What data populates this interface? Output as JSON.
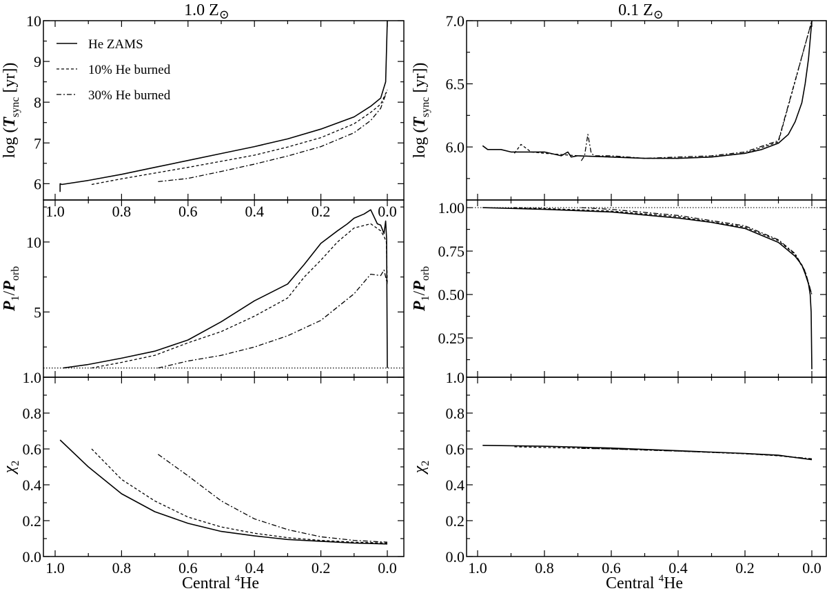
{
  "legend": [
    {
      "label": "He ZAMS",
      "style": "solid"
    },
    {
      "label": "10% He burned",
      "style": "dashed"
    },
    {
      "label": "30% He burned",
      "style": "dashdot"
    }
  ],
  "columns": [
    {
      "title_main": "1.0 Z",
      "title_sym": "⊙"
    },
    {
      "title_main": "0.1 Z",
      "title_sym": "⊙"
    }
  ],
  "xlabel": {
    "text": "Central ",
    "sup": "4",
    "element": "He"
  },
  "ylabels": {
    "tsync": {
      "pre": "log (",
      "var": "T",
      "sub": "sync",
      "post": " [yr])"
    },
    "ratio": {
      "var1": "P",
      "sub1": "1",
      "slash": "/",
      "var2": "P",
      "sub2": "orb"
    },
    "chi": {
      "var": "χ",
      "sub": "2"
    }
  },
  "chart_data": [
    {
      "type": "line",
      "panel": "left-top",
      "column": 0,
      "ylabel": "tsync",
      "xlim": [
        1.0,
        0.0
      ],
      "ylim": [
        5.6,
        10
      ],
      "xticks": [
        "1.0",
        "0.8",
        "0.6",
        "0.4",
        "0.2",
        "0.0"
      ],
      "yticks": [
        "6",
        "7",
        "8",
        "9",
        "10"
      ],
      "yminor": 0.5,
      "series": [
        {
          "name": "He ZAMS",
          "style": "solid",
          "x": [
            0.985,
            0.985,
            0.98,
            0.9,
            0.8,
            0.7,
            0.6,
            0.5,
            0.4,
            0.3,
            0.2,
            0.1,
            0.05,
            0.02,
            0.005,
            0.0
          ],
          "y": [
            5.8,
            6.0,
            5.98,
            6.08,
            6.23,
            6.4,
            6.57,
            6.74,
            6.91,
            7.1,
            7.34,
            7.64,
            7.9,
            8.1,
            8.5,
            10.0
          ]
        },
        {
          "name": "10% He burned",
          "style": "dashed",
          "x": [
            0.89,
            0.8,
            0.7,
            0.6,
            0.5,
            0.4,
            0.3,
            0.2,
            0.1,
            0.05,
            0.02,
            0.0
          ],
          "y": [
            5.98,
            6.12,
            6.26,
            6.4,
            6.55,
            6.7,
            6.9,
            7.13,
            7.47,
            7.75,
            7.95,
            8.3
          ]
        },
        {
          "name": "30% He burned",
          "style": "dashdot",
          "x": [
            0.69,
            0.6,
            0.5,
            0.4,
            0.3,
            0.2,
            0.1,
            0.05,
            0.02,
            0.0
          ],
          "y": [
            6.05,
            6.13,
            6.3,
            6.48,
            6.68,
            6.91,
            7.25,
            7.55,
            7.85,
            8.3
          ]
        }
      ]
    },
    {
      "type": "line",
      "panel": "left-middle",
      "column": 0,
      "ylabel": "ratio",
      "xlim": [
        1.0,
        0.0
      ],
      "ylim": [
        0.34,
        13.0
      ],
      "reference_line": 1.0,
      "xticks": [],
      "yticks": [
        "5",
        "10"
      ],
      "yminor": 2.5,
      "series": [
        {
          "name": "He ZAMS",
          "style": "solid",
          "x": [
            0.975,
            0.9,
            0.8,
            0.7,
            0.6,
            0.5,
            0.4,
            0.3,
            0.25,
            0.2,
            0.15,
            0.12,
            0.1,
            0.07,
            0.05,
            0.03,
            0.02,
            0.01,
            0.005,
            0.002,
            0.0
          ],
          "y": [
            1.0,
            1.25,
            1.7,
            2.2,
            3.0,
            4.3,
            5.8,
            7.0,
            8.4,
            9.9,
            10.8,
            11.3,
            11.7,
            12.0,
            12.3,
            11.3,
            11.2,
            10.6,
            11.5,
            10.2,
            1.0
          ]
        },
        {
          "name": "10% He burned",
          "style": "dashed",
          "x": [
            0.89,
            0.8,
            0.7,
            0.6,
            0.5,
            0.4,
            0.3,
            0.25,
            0.2,
            0.15,
            0.1,
            0.05,
            0.02,
            0.01,
            0.003,
            0.0
          ],
          "y": [
            1.0,
            1.4,
            1.9,
            2.8,
            3.6,
            4.7,
            6.0,
            7.5,
            8.7,
            10.0,
            11.0,
            11.3,
            10.8,
            10.4,
            10.0,
            7.0
          ]
        },
        {
          "name": "30% He burned",
          "style": "dashdot",
          "x": [
            0.69,
            0.6,
            0.5,
            0.4,
            0.3,
            0.2,
            0.1,
            0.05,
            0.02,
            0.01,
            0.0
          ],
          "y": [
            1.0,
            1.5,
            1.9,
            2.5,
            3.3,
            4.4,
            6.3,
            7.7,
            7.6,
            8.0,
            7.0
          ]
        }
      ]
    },
    {
      "type": "line",
      "panel": "left-bottom",
      "column": 0,
      "ylabel": "chi",
      "xlim": [
        1.0,
        0.0
      ],
      "ylim": [
        0.0,
        1.0
      ],
      "xticks": [
        "1.0",
        "0.8",
        "0.6",
        "0.4",
        "0.2",
        "0.0"
      ],
      "yticks": [
        "0.0",
        "0.2",
        "0.4",
        "0.6",
        "0.8",
        "1.0"
      ],
      "yminor": 0.1,
      "series": [
        {
          "name": "He ZAMS",
          "style": "solid",
          "x": [
            0.985,
            0.9,
            0.8,
            0.7,
            0.6,
            0.5,
            0.4,
            0.3,
            0.2,
            0.1,
            0.0
          ],
          "y": [
            0.65,
            0.5,
            0.35,
            0.25,
            0.185,
            0.14,
            0.115,
            0.095,
            0.085,
            0.075,
            0.07
          ]
        },
        {
          "name": "10% He burned",
          "style": "dashed",
          "x": [
            0.89,
            0.8,
            0.7,
            0.6,
            0.5,
            0.4,
            0.3,
            0.2,
            0.1,
            0.0
          ],
          "y": [
            0.6,
            0.43,
            0.31,
            0.22,
            0.165,
            0.13,
            0.105,
            0.09,
            0.08,
            0.075
          ]
        },
        {
          "name": "30% He burned",
          "style": "dashdot",
          "x": [
            0.69,
            0.6,
            0.5,
            0.4,
            0.3,
            0.2,
            0.1,
            0.0
          ],
          "y": [
            0.57,
            0.45,
            0.31,
            0.21,
            0.15,
            0.11,
            0.09,
            0.08
          ]
        }
      ]
    },
    {
      "type": "line",
      "panel": "right-top",
      "column": 1,
      "ylabel": "tsync",
      "xlim": [
        1.0,
        0.0
      ],
      "ylim": [
        5.58,
        7.0
      ],
      "xticks": [],
      "yticks": [
        "6.0",
        "6.5",
        "7.0"
      ],
      "yminor": 0.25,
      "series": [
        {
          "name": "He ZAMS",
          "style": "solid",
          "x": [
            0.985,
            0.97,
            0.93,
            0.9,
            0.8,
            0.75,
            0.73,
            0.72,
            0.7,
            0.6,
            0.5,
            0.4,
            0.3,
            0.2,
            0.15,
            0.1,
            0.07,
            0.05,
            0.03,
            0.02,
            0.01,
            0.0
          ],
          "y": [
            6.01,
            5.98,
            5.98,
            5.96,
            5.96,
            5.93,
            5.96,
            5.92,
            5.93,
            5.92,
            5.91,
            5.91,
            5.92,
            5.95,
            5.98,
            6.03,
            6.1,
            6.2,
            6.35,
            6.5,
            6.7,
            7.0
          ]
        },
        {
          "name": "10% He burned",
          "style": "dashed",
          "x": [
            0.89,
            0.87,
            0.84,
            0.8,
            0.7,
            0.6,
            0.5,
            0.4,
            0.3,
            0.2,
            0.1,
            0.0
          ],
          "y": [
            5.95,
            6.02,
            5.96,
            5.95,
            5.93,
            5.92,
            5.91,
            5.91,
            5.92,
            5.95,
            6.04,
            7.0
          ]
        },
        {
          "name": "30% He burned",
          "style": "dashdot",
          "x": [
            0.69,
            0.68,
            0.67,
            0.66,
            0.65,
            0.6,
            0.5,
            0.4,
            0.3,
            0.2,
            0.1,
            0.0
          ],
          "y": [
            5.89,
            5.93,
            6.1,
            5.95,
            5.93,
            5.93,
            5.91,
            5.92,
            5.93,
            5.96,
            6.05,
            7.0
          ]
        }
      ]
    },
    {
      "type": "line",
      "panel": "right-middle",
      "column": 1,
      "ylabel": "ratio",
      "xlim": [
        1.0,
        0.0
      ],
      "ylim": [
        0.024,
        1.044
      ],
      "reference_line": 1.0,
      "xticks": [],
      "yticks": [
        "0.25",
        "0.50",
        "0.75",
        "1.00"
      ],
      "yminor": 0.125,
      "series": [
        {
          "name": "He ZAMS",
          "style": "solid",
          "x": [
            0.985,
            0.8,
            0.6,
            0.4,
            0.3,
            0.2,
            0.1,
            0.05,
            0.03,
            0.02,
            0.01,
            0.005,
            0.002,
            0.0
          ],
          "y": [
            1.0,
            0.99,
            0.975,
            0.94,
            0.915,
            0.88,
            0.8,
            0.72,
            0.67,
            0.62,
            0.56,
            0.5,
            0.4,
            0.07
          ]
        },
        {
          "name": "10% He burned",
          "style": "dashed",
          "x": [
            0.89,
            0.8,
            0.6,
            0.4,
            0.2,
            0.1,
            0.05,
            0.02,
            0.0
          ],
          "y": [
            1.0,
            0.995,
            0.98,
            0.948,
            0.888,
            0.81,
            0.73,
            0.63,
            0.5
          ]
        },
        {
          "name": "30% He burned",
          "style": "dashdot",
          "x": [
            0.69,
            0.6,
            0.4,
            0.2,
            0.1,
            0.05,
            0.02,
            0.0
          ],
          "y": [
            1.0,
            0.99,
            0.955,
            0.895,
            0.815,
            0.735,
            0.635,
            0.5
          ]
        }
      ]
    },
    {
      "type": "line",
      "panel": "right-bottom",
      "column": 1,
      "ylabel": "chi",
      "xlim": [
        1.0,
        0.0
      ],
      "ylim": [
        0.0,
        1.0
      ],
      "xticks": [
        "1.0",
        "0.8",
        "0.6",
        "0.4",
        "0.2",
        "0.0"
      ],
      "yticks": [
        "0.0",
        "0.2",
        "0.4",
        "0.6",
        "0.8",
        "1.0"
      ],
      "yminor": 0.1,
      "series": [
        {
          "name": "He ZAMS",
          "style": "solid",
          "x": [
            0.985,
            0.8,
            0.6,
            0.4,
            0.2,
            0.1,
            0.0
          ],
          "y": [
            0.62,
            0.615,
            0.605,
            0.59,
            0.575,
            0.565,
            0.54
          ]
        },
        {
          "name": "10% He burned",
          "style": "dashed",
          "x": [
            0.89,
            0.8,
            0.6,
            0.4,
            0.2,
            0.1,
            0.0
          ],
          "y": [
            0.612,
            0.608,
            0.6,
            0.588,
            0.573,
            0.562,
            0.542
          ]
        },
        {
          "name": "30% He burned",
          "style": "dashdot",
          "x": [
            0.69,
            0.6,
            0.4,
            0.2,
            0.1,
            0.0
          ],
          "y": [
            0.603,
            0.6,
            0.588,
            0.574,
            0.563,
            0.545
          ]
        }
      ]
    }
  ]
}
